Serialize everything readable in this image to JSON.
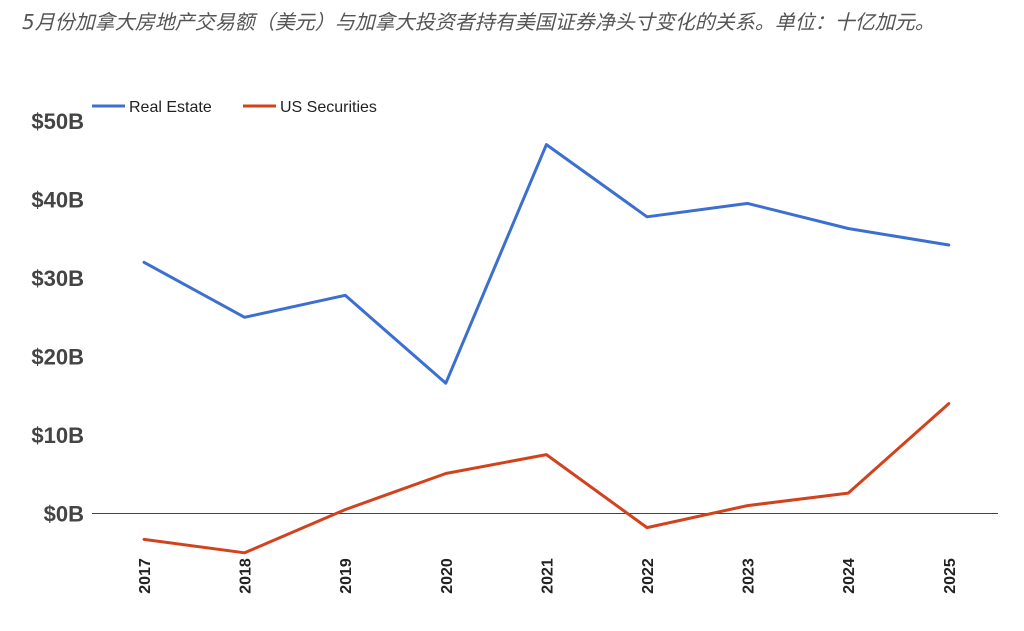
{
  "chart_data": {
    "type": "line",
    "title": "5月份加拿大房地产交易额（美元）与加拿大投资者持有美国证券净头寸变化的关系。单位：十亿加元。",
    "xlabel": "",
    "ylabel": "",
    "x": [
      "2017",
      "2018",
      "2019",
      "2020",
      "2021",
      "2022",
      "2023",
      "2024",
      "2025"
    ],
    "yticks": [
      "$0B",
      "$10B",
      "$20B",
      "$30B",
      "$40B",
      "$50B"
    ],
    "ylim": [
      -5.6,
      50
    ],
    "grid": false,
    "legend_position": "top-left",
    "series": [
      {
        "name": "Real Estate",
        "color": "#3c6fcf",
        "values": [
          32.0,
          25.0,
          27.8,
          16.6,
          47.0,
          37.8,
          39.5,
          36.3,
          34.2
        ]
      },
      {
        "name": "US Securities",
        "color": "#d2431d",
        "values": [
          -3.3,
          -5.0,
          0.5,
          5.1,
          7.5,
          -1.8,
          1.0,
          2.6,
          14.0
        ]
      }
    ]
  }
}
